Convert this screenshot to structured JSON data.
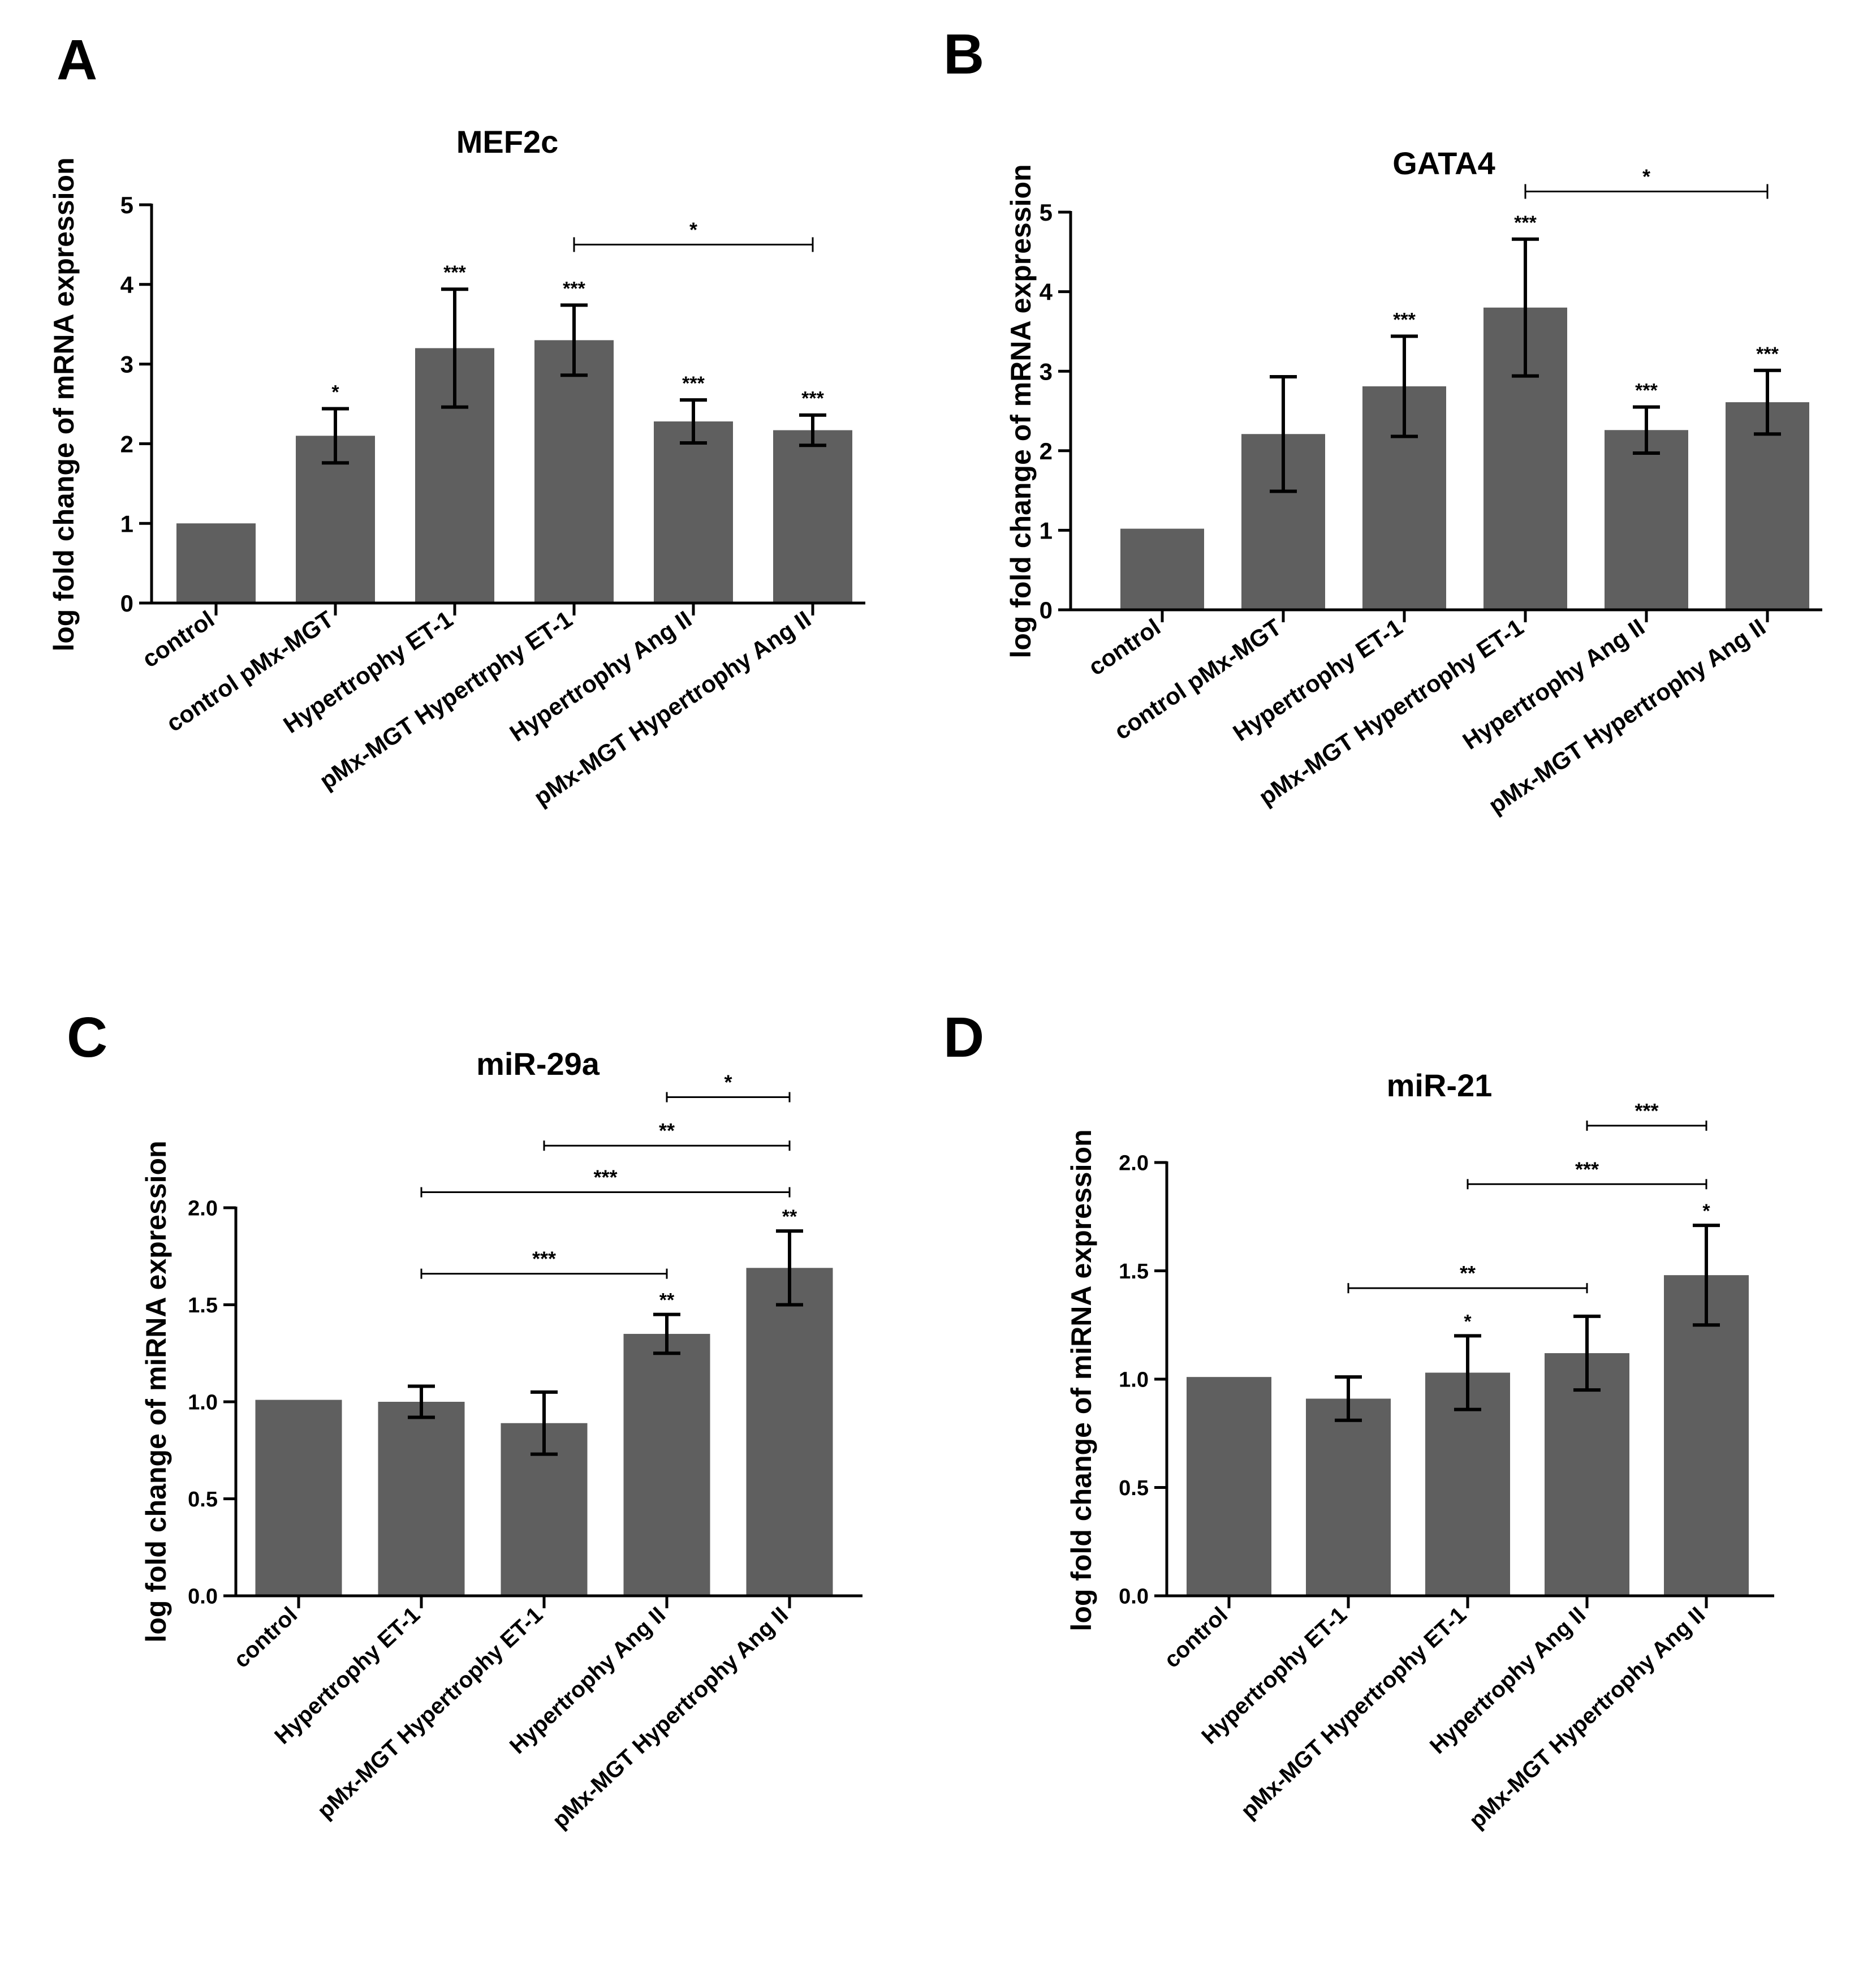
{
  "chart_data": [
    {
      "panel": "A",
      "type": "bar",
      "title": "MEF2c",
      "ylabel": "log fold change of mRNA expression",
      "xlabel": "",
      "ylim": [
        0,
        5
      ],
      "yticks": [
        "0",
        "1",
        "2",
        "3",
        "4",
        "5"
      ],
      "categories": [
        "control",
        "control pMx-MGT",
        "Hypertrophy ET-1",
        "pMx-MGT Hypertrphy ET-1",
        "Hypertrophy Ang II",
        "pMx-MGT Hypertrophy Ang II"
      ],
      "values": [
        1.0,
        2.1,
        3.2,
        3.3,
        2.28,
        2.17
      ],
      "errors": [
        0,
        0.34,
        0.74,
        0.44,
        0.27,
        0.19
      ],
      "significance": [
        "",
        "*",
        "***",
        "***",
        "***",
        "***"
      ],
      "brackets": [
        {
          "from": 3,
          "to": 5,
          "label": "*",
          "level": 4.5
        }
      ]
    },
    {
      "panel": "B",
      "type": "bar",
      "title": "GATA4",
      "ylabel": "log fold change of mRNA expression",
      "xlabel": "",
      "ylim": [
        0,
        5
      ],
      "yticks": [
        "0",
        "1",
        "2",
        "3",
        "4",
        "5"
      ],
      "categories": [
        "control",
        "control pMx-MGT",
        "Hypertrophy ET-1",
        "pMx-MGT Hypertrophy ET-1",
        "Hypertrophy Ang II",
        "pMx-MGT Hypertrophy Ang II"
      ],
      "values": [
        1.02,
        2.21,
        2.81,
        3.8,
        2.26,
        2.61
      ],
      "errors": [
        0,
        0.72,
        0.63,
        0.86,
        0.29,
        0.4
      ],
      "significance": [
        "",
        "",
        "***",
        "***",
        "***",
        "***"
      ],
      "brackets": [
        {
          "from": 3,
          "to": 5,
          "label": "*",
          "level": 5.26
        }
      ]
    },
    {
      "panel": "C",
      "type": "bar",
      "title": "miR-29a",
      "ylabel": "log fold change of miRNA expression",
      "xlabel": "",
      "ylim": [
        0,
        2.0
      ],
      "yticks": [
        "0.0",
        "0.5",
        "1.0",
        "1.5",
        "2.0"
      ],
      "categories": [
        "control",
        "Hypertrophy ET-1",
        "pMx-MGT Hypertrophy ET-1",
        "Hypertrophy Ang II",
        "pMx-MGT Hypertrophy Ang II"
      ],
      "values": [
        1.01,
        1.0,
        0.89,
        1.35,
        1.69
      ],
      "errors": [
        0,
        0.08,
        0.16,
        0.1,
        0.19
      ],
      "significance": [
        "",
        "",
        "",
        "**",
        "**"
      ],
      "brackets": [
        {
          "from": 1,
          "to": 3,
          "label": "***",
          "level": 1.66
        },
        {
          "from": 1,
          "to": 4,
          "label": "***",
          "level": 2.08
        },
        {
          "from": 2,
          "to": 4,
          "label": "**",
          "level": 2.32
        },
        {
          "from": 3,
          "to": 4,
          "label": "*",
          "level": 2.57
        }
      ]
    },
    {
      "panel": "D",
      "type": "bar",
      "title": "miR-21",
      "ylabel": "log fold change of miRNA expression",
      "xlabel": "",
      "ylim": [
        0,
        2.0
      ],
      "yticks": [
        "0.0",
        "0.5",
        "1.0",
        "1.5",
        "2.0"
      ],
      "categories": [
        "control",
        "Hypertrophy ET-1",
        "pMx-MGT Hypertrophy ET-1",
        "Hypertrophy Ang II",
        "pMx-MGT Hypertrophy Ang II"
      ],
      "values": [
        1.01,
        0.91,
        1.03,
        1.12,
        1.48
      ],
      "errors": [
        0,
        0.1,
        0.17,
        0.17,
        0.23
      ],
      "significance": [
        "",
        "",
        "*",
        "",
        "*"
      ],
      "brackets": [
        {
          "from": 1,
          "to": 3,
          "label": "**",
          "level": 1.42
        },
        {
          "from": 2,
          "to": 4,
          "label": "***",
          "level": 1.9
        },
        {
          "from": 3,
          "to": 4,
          "label": "***",
          "level": 2.17
        }
      ]
    }
  ]
}
